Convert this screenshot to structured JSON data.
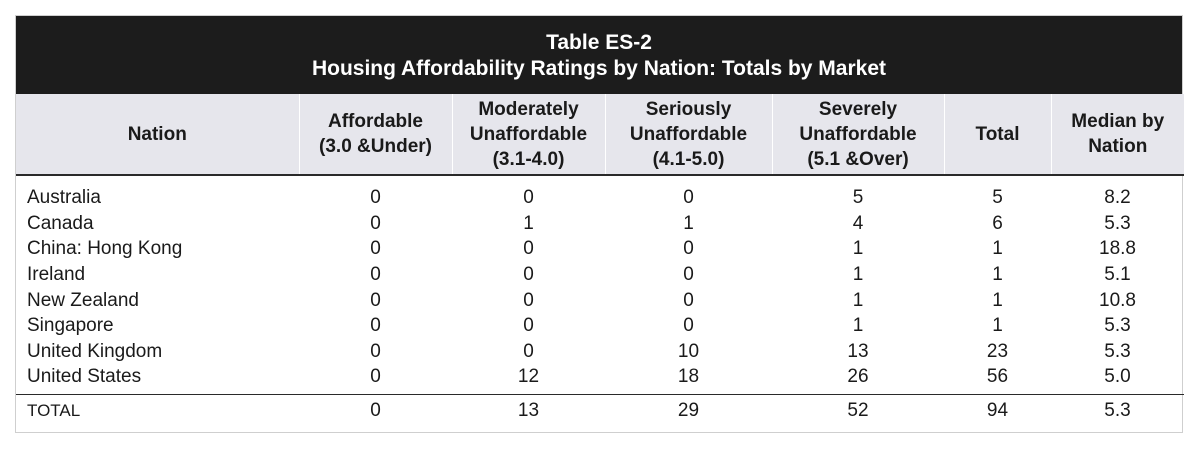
{
  "table": {
    "title_line1": "Table ES-2",
    "title_line2": "Housing Affordability Ratings by Nation: Totals by Market",
    "headers": [
      [
        "Nation"
      ],
      [
        "Affordable",
        "(3.0 &Under)"
      ],
      [
        "Moderately",
        "Unaffordable",
        "(3.1-4.0)"
      ],
      [
        "Seriously",
        "Unaffordable",
        "(4.1-5.0)"
      ],
      [
        "Severely",
        "Unaffordable",
        "(5.1 &Over)"
      ],
      [
        "Total"
      ],
      [
        "Median by",
        "Nation"
      ]
    ],
    "rows": [
      [
        "Australia",
        "0",
        "0",
        "0",
        "5",
        "5",
        "8.2"
      ],
      [
        "Canada",
        "0",
        "1",
        "1",
        "4",
        "6",
        "5.3"
      ],
      [
        "China: Hong Kong",
        "0",
        "0",
        "0",
        "1",
        "1",
        "18.8"
      ],
      [
        "Ireland",
        "0",
        "0",
        "0",
        "1",
        "1",
        "5.1"
      ],
      [
        "New Zealand",
        "0",
        "0",
        "0",
        "1",
        "1",
        "10.8"
      ],
      [
        "Singapore",
        "0",
        "0",
        "0",
        "1",
        "1",
        "5.3"
      ],
      [
        "United Kingdom",
        "0",
        "0",
        "10",
        "13",
        "23",
        "5.3"
      ],
      [
        "United States",
        "0",
        "12",
        "18",
        "26",
        "56",
        "5.0"
      ]
    ],
    "total": [
      "TOTAL",
      "0",
      "13",
      "29",
      "52",
      "94",
      "5.3"
    ]
  }
}
